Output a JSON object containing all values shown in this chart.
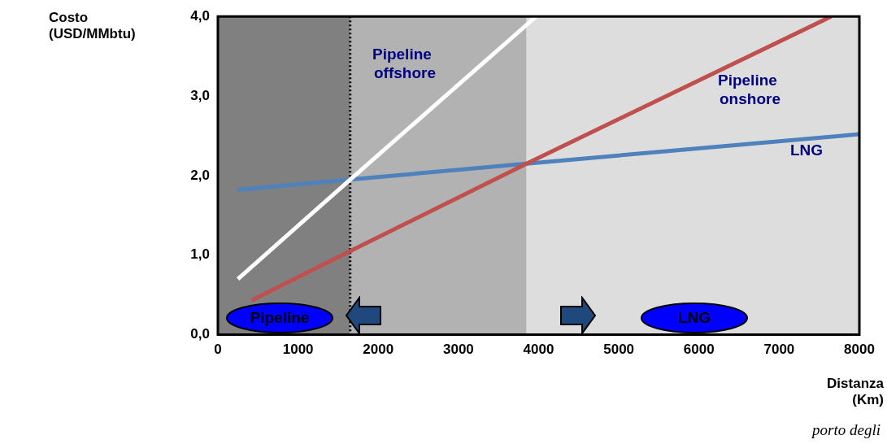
{
  "chart_data": {
    "type": "line",
    "xlabel": "Distanza (Km)",
    "ylabel": "Costo (USD/MMbtu)",
    "xlim": [
      0,
      8000
    ],
    "xticks": [
      0,
      1000,
      2000,
      3000,
      4000,
      5000,
      6000,
      7000,
      8000
    ],
    "ylim": [
      0,
      4
    ],
    "yticks": [
      {
        "value": 0,
        "label": "0,0"
      },
      {
        "value": 1,
        "label": "1,0"
      },
      {
        "value": 2,
        "label": "2,0"
      },
      {
        "value": 3,
        "label": "3,0"
      },
      {
        "value": 4,
        "label": "4,0"
      }
    ],
    "series": [
      {
        "name": "Pipeline offshore",
        "color": "#ffffff",
        "x": [
          250,
          1650,
          3970
        ],
        "values": [
          0.7,
          1.95,
          4.0
        ]
      },
      {
        "name": "Pipeline onshore",
        "color": "#c0504d",
        "x": [
          420,
          1650,
          3850,
          7650
        ],
        "values": [
          0.43,
          1.05,
          2.15,
          4.0
        ]
      },
      {
        "name": "LNG",
        "color": "#4f81bd",
        "x": [
          250,
          1650,
          3850,
          8000
        ],
        "values": [
          1.82,
          1.95,
          2.15,
          2.52
        ]
      }
    ],
    "bands": [
      {
        "axis": "x",
        "from": 0,
        "to": 1650,
        "color": "#808080"
      },
      {
        "axis": "x",
        "from": 1650,
        "to": 3850,
        "color": "#b2b2b2"
      },
      {
        "axis": "x",
        "from": 3850,
        "to": 8000,
        "color": "#dddddd"
      }
    ],
    "ref_lines": [
      {
        "axis": "x",
        "value": 1650,
        "color": "#000000",
        "line_style": "dotted"
      }
    ],
    "annotations": [
      "Pipeline",
      "LNG",
      "porto degli"
    ],
    "grid": false,
    "legend": false,
    "marker": "none",
    "line_style": "solid"
  }
}
